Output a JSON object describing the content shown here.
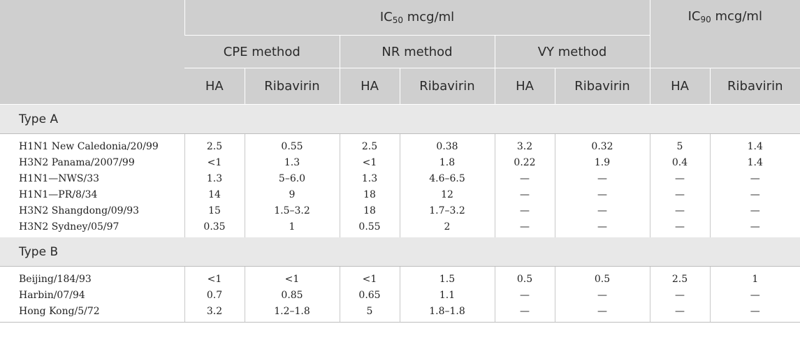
{
  "header": {
    "ic50_prefix": "IC",
    "ic50_sub": "50",
    "ic50_unit": " mcg/ml",
    "ic90_prefix": "IC",
    "ic90_sub": "90",
    "ic90_unit": " mcg/ml",
    "methods": [
      "CPE method",
      "NR method",
      "VY method"
    ],
    "subcols": [
      "HA",
      "Ribavirin",
      "HA",
      "Ribavirin",
      "HA",
      "Ribavirin",
      "HA",
      "Ribavirin"
    ]
  },
  "groups": [
    {
      "label": "Type A",
      "rows": [
        {
          "strain": "H1N1 New Caledonia/20/99",
          "values": [
            "2.5",
            "0.55",
            "2.5",
            "0.38",
            "3.2",
            "0.32",
            "5",
            "1.4"
          ]
        },
        {
          "strain": "H3N2 Panama/2007/99",
          "values": [
            "<1",
            "1.3",
            "<1",
            "1.8",
            "0.22",
            "1.9",
            "0.4",
            "1.4"
          ]
        },
        {
          "strain": "H1N1—NWS/33",
          "values": [
            "1.3",
            "5–6.0",
            "1.3",
            "4.6–6.5",
            "—",
            "—",
            "—",
            "—"
          ]
        },
        {
          "strain": "H1N1—PR/8/34",
          "values": [
            "14",
            "9",
            "18",
            "12",
            "—",
            "—",
            "—",
            "—"
          ]
        },
        {
          "strain": "H3N2 Shangdong/09/93",
          "values": [
            "15",
            "1.5–3.2",
            "18",
            "1.7–3.2",
            "—",
            "—",
            "—",
            "—"
          ]
        },
        {
          "strain": "H3N2 Sydney/05/97",
          "values": [
            "0.35",
            "1",
            "0.55",
            "2",
            "—",
            "—",
            "—",
            "—"
          ]
        }
      ]
    },
    {
      "label": "Type B",
      "rows": [
        {
          "strain": "Beijing/184/93",
          "values": [
            "<1",
            "<1",
            "<1",
            "1.5",
            "0.5",
            "0.5",
            "2.5",
            "1"
          ]
        },
        {
          "strain": "Harbin/07/94",
          "values": [
            "0.7",
            "0.85",
            "0.65",
            "1.1",
            "—",
            "—",
            "—",
            "—"
          ]
        },
        {
          "strain": "Hong Kong/5/72",
          "values": [
            "3.2",
            "1.2–1.8",
            "5",
            "1.8–1.8",
            "—",
            "—",
            "—",
            "—"
          ]
        }
      ]
    }
  ]
}
